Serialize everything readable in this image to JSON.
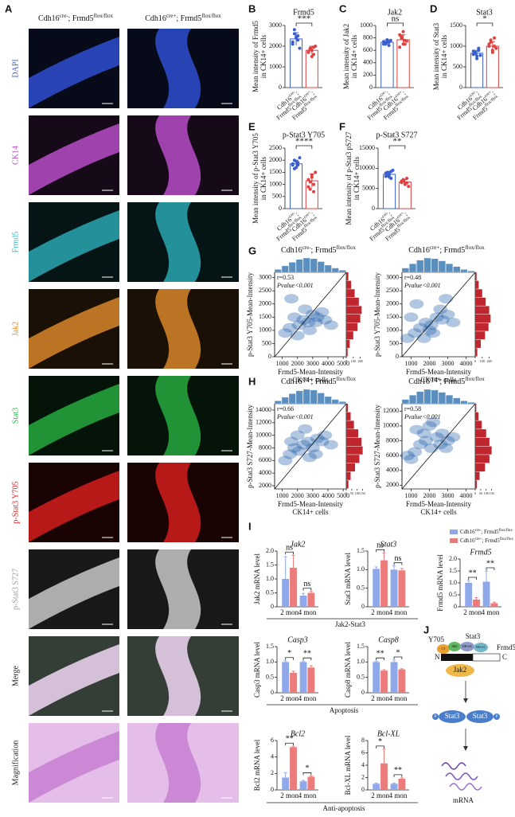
{
  "panel_letters": [
    "A",
    "B",
    "C",
    "D",
    "E",
    "F",
    "G",
    "H",
    "I",
    "J"
  ],
  "genotypes": {
    "control": [
      {
        "text": "Cdh16"
      },
      {
        "text": "cre-",
        "sup": true
      },
      {
        "text": ";"
      },
      {
        "text": " Frmd5"
      },
      {
        "text": "flox/flox",
        "sup": true
      }
    ],
    "ko": [
      {
        "text": "Cdh16"
      },
      {
        "text": "cre+",
        "sup": true
      },
      {
        "text": ";"
      },
      {
        "text": " Frmd5"
      },
      {
        "text": "flox/flox",
        "sup": true
      }
    ]
  },
  "panel_a": {
    "rows": [
      {
        "label": "DAPI",
        "label_color": "#3a5ec8",
        "stain": "#2f4fd0",
        "background": "#000000"
      },
      {
        "label": "CK14",
        "label_color": "#b04fc0",
        "stain": "#b84cc8",
        "background": "#000000"
      },
      {
        "label": "Frmd5",
        "label_color": "#3ab5c0",
        "stain": "#2aa6b0",
        "background": "#000000"
      },
      {
        "label": "Jak2",
        "label_color": "#d98a2a",
        "stain": "#d8862a",
        "background": "#000000"
      },
      {
        "label": "Stat3",
        "label_color": "#2fb34a",
        "stain": "#27a83e",
        "background": "#000000"
      },
      {
        "label": "p-Stat3 Y705",
        "label_color": "#e02020",
        "stain": "#d41c1c",
        "background": "#000000"
      },
      {
        "label": "p-Stat3 S727",
        "label_color": "#9a9a9a",
        "stain": "#c8c8c8",
        "background": "#000000"
      },
      {
        "label": "Merge",
        "label_color": "#222222",
        "stain": "#f0d8f5",
        "background": "#1c2a1c"
      },
      {
        "label": "Magnification",
        "label_color": "#222222",
        "stain": "#c77fd0",
        "background": "#e9c7ec"
      }
    ]
  },
  "chart_data": [
    {
      "type": "dotbar",
      "title": "Frmd5",
      "ylabel": [
        "Mean intensity of Frmd5",
        "in CK14+ cells"
      ],
      "ylim": [
        0,
        3000
      ],
      "yticks": [
        0,
        1000,
        2000,
        3000
      ],
      "values": [
        2350,
        1800
      ],
      "errors": [
        300,
        200
      ],
      "colors": [
        "#3a5fcd",
        "#e04040"
      ],
      "significance": "***",
      "points": [
        [
          2100,
          2600,
          2450,
          2300,
          1900,
          2200,
          2800,
          2400,
          2500
        ],
        [
          1700,
          1900,
          1800,
          1600,
          2000,
          1750,
          1850,
          1500,
          1950
        ]
      ]
    },
    {
      "type": "dotbar",
      "title": "Jak2",
      "ylabel": [
        "Mean intensity of Jak2",
        "in CK14+ cells"
      ],
      "ylim": [
        0,
        1000
      ],
      "yticks": [
        0,
        200,
        400,
        600,
        800,
        1000
      ],
      "values": [
        730,
        770
      ],
      "errors": [
        40,
        80
      ],
      "colors": [
        "#3a5fcd",
        "#e04040"
      ],
      "significance": "ns",
      "points": [
        [
          700,
          720,
          750,
          680,
          760,
          740,
          700,
          770,
          730
        ],
        [
          650,
          800,
          900,
          700,
          750,
          850,
          820,
          700,
          760
        ]
      ]
    },
    {
      "type": "dotbar",
      "title": "Stat3",
      "ylabel": [
        "Mean intensity of Stat3",
        "in CK14+ cells"
      ],
      "ylim": [
        0,
        1500
      ],
      "yticks": [
        0,
        500,
        1000,
        1500
      ],
      "values": [
        830,
        1000
      ],
      "errors": [
        70,
        110
      ],
      "colors": [
        "#3a5fcd",
        "#e04040"
      ],
      "significance": "*",
      "points": [
        [
          800,
          850,
          700,
          900,
          780,
          880,
          820,
          760,
          950
        ],
        [
          1000,
          1100,
          850,
          1200,
          950,
          1050,
          1150,
          900,
          1000
        ]
      ]
    },
    {
      "type": "dotbar",
      "title": "p-Stat3 Y705",
      "ylabel": [
        "Mean intensity of p-Stat3 Y705",
        "in CK14+ cells"
      ],
      "ylim": [
        0,
        2500
      ],
      "yticks": [
        0,
        500,
        1000,
        1500,
        2000,
        2500
      ],
      "values": [
        1850,
        1150
      ],
      "errors": [
        150,
        280
      ],
      "colors": [
        "#3a5fcd",
        "#e04040"
      ],
      "significance": "****",
      "points": [
        [
          1800,
          2000,
          1700,
          1900,
          2100,
          1850,
          1650,
          1950,
          1800
        ],
        [
          1200,
          800,
          1400,
          1000,
          1500,
          900,
          1100,
          1300,
          700
        ]
      ]
    },
    {
      "type": "dotbar",
      "title": "p-Stat3 S727",
      "ylabel": [
        "Mean intensity of p-Stat3 pS727",
        "in CK14+ cells"
      ],
      "ylim": [
        0,
        15000
      ],
      "yticks": [
        0,
        5000,
        10000,
        15000
      ],
      "values": [
        8500,
        6600
      ],
      "errors": [
        700,
        600
      ],
      "colors": [
        "#3a5fcd",
        "#e04040"
      ],
      "significance": "**",
      "points": [
        [
          8000,
          9000,
          8500,
          7500,
          9500,
          8800,
          8200,
          7800,
          9200
        ],
        [
          6500,
          7000,
          6000,
          7500,
          5500,
          6800,
          7200,
          6200,
          6400
        ]
      ]
    },
    {
      "type": "scatter",
      "genotype": "control",
      "ylabel": "p-Stat3 Y705-Mean-Intensity",
      "xlabel": [
        "Frmd5-Mean-Intensity",
        "CK14+ cells"
      ],
      "annotations": [
        "r=0.53",
        "Pvalue<0.001"
      ],
      "xlim": [
        500,
        5200
      ],
      "xticks": [
        1000,
        2000,
        3000,
        4000,
        5000
      ],
      "ylim": [
        0,
        3200
      ],
      "yticks": [
        0,
        500,
        1000,
        1500,
        2000,
        2500,
        3000
      ],
      "x": [
        1200,
        1500,
        1800,
        2100,
        2400,
        2700,
        3000,
        3300,
        3600,
        2000,
        2500,
        3200,
        1600,
        2800,
        3800,
        4200
      ],
      "y": [
        900,
        1100,
        1500,
        1200,
        1400,
        1300,
        1600,
        1500,
        1700,
        800,
        1800,
        1300,
        2200,
        1000,
        1400,
        1200
      ],
      "x_hist": [
        40,
        90,
        140,
        180,
        200,
        190,
        150,
        100,
        60,
        30
      ],
      "y_hist": [
        20,
        50,
        100,
        160,
        200,
        220,
        180,
        120,
        70,
        30
      ],
      "y_hist_lim": [
        0,
        250
      ],
      "y_hist_ticks": [
        0,
        100,
        200
      ],
      "point_color": "#1f5fa8",
      "hist_color": "#5a8fc0",
      "hist2_color": "#c0262d"
    },
    {
      "type": "scatter",
      "genotype": "ko",
      "ylabel": "p-Stat3 Y705-Mean-Intensity",
      "xlabel": [
        "Frmd5-Mean-Intensity",
        "CK14+ cells"
      ],
      "annotations": [
        "r=0.48",
        "Pvalue<0.001"
      ],
      "xlim": [
        500,
        4500
      ],
      "xticks": [
        1000,
        2000,
        3000,
        4000
      ],
      "ylim": [
        0,
        3200
      ],
      "yticks": [
        0,
        500,
        1000,
        1500,
        2000,
        2500,
        3000
      ],
      "x": [
        800,
        1200,
        1500,
        1800,
        2100,
        2400,
        2700,
        3000,
        1300,
        2000,
        2600,
        3300,
        1000,
        1700,
        2200,
        2900
      ],
      "y": [
        700,
        900,
        1100,
        1300,
        1200,
        1500,
        1400,
        1600,
        2000,
        1000,
        1800,
        1300,
        1500,
        700,
        900,
        2200
      ],
      "x_hist": [
        60,
        120,
        170,
        200,
        190,
        160,
        120,
        80,
        40,
        20
      ],
      "y_hist": [
        30,
        80,
        140,
        190,
        220,
        200,
        150,
        100,
        50,
        20
      ],
      "y_hist_lim": [
        0,
        250
      ],
      "y_hist_ticks": [
        0,
        100,
        200
      ],
      "point_color": "#1f5fa8",
      "hist_color": "#5a8fc0",
      "hist2_color": "#c0262d"
    },
    {
      "type": "scatter",
      "genotype": "control",
      "ylabel": "p-Stat3 S727-Mean-Intensity",
      "xlabel": [
        "Frmd5-Mean-Intensity",
        "CK14+ cells"
      ],
      "annotations": [
        "r=0.66",
        "Pvalue<0.001"
      ],
      "xlim": [
        500,
        5200
      ],
      "xticks": [
        1000,
        2000,
        3000,
        4000,
        5000
      ],
      "ylim": [
        1500,
        15000
      ],
      "yticks": [
        2000,
        4000,
        6000,
        8000,
        10000,
        12000,
        14000
      ],
      "x": [
        1200,
        1500,
        1800,
        2100,
        2400,
        2700,
        3000,
        3300,
        3600,
        2000,
        2500,
        3200,
        1600,
        2800,
        3800,
        4200
      ],
      "y": [
        6000,
        7000,
        8000,
        7500,
        8500,
        9000,
        8000,
        9500,
        9000,
        10000,
        11000,
        7000,
        9000,
        6500,
        10000,
        8500
      ],
      "x_hist": [
        40,
        90,
        140,
        180,
        200,
        190,
        150,
        100,
        60,
        30
      ],
      "y_hist": [
        20,
        40,
        80,
        120,
        150,
        140,
        110,
        70,
        40,
        15
      ],
      "y_hist_lim": [
        0,
        160
      ],
      "y_hist_ticks": [
        0,
        50,
        100,
        150
      ],
      "point_color": "#1f5fa8",
      "hist_color": "#5a8fc0",
      "hist2_color": "#c0262d"
    },
    {
      "type": "scatter",
      "genotype": "ko",
      "ylabel": "p-Stat3 S727-Mean-Intensity",
      "xlabel": [
        "Frmd5-Mean-Intensity",
        "CK14+ cells"
      ],
      "annotations": [
        "r=0.58",
        "Pvalue<0.001"
      ],
      "xlim": [
        500,
        4500
      ],
      "xticks": [
        1000,
        2000,
        3000,
        4000
      ],
      "ylim": [
        1500,
        13000
      ],
      "yticks": [
        2000,
        4000,
        6000,
        8000,
        10000,
        12000
      ],
      "x": [
        800,
        1200,
        1500,
        1800,
        2100,
        2400,
        2700,
        3000,
        1300,
        2000,
        2600,
        3300,
        1000,
        1700,
        2200,
        2900
      ],
      "y": [
        6000,
        6500,
        7500,
        8000,
        7000,
        8500,
        9000,
        8000,
        9500,
        10000,
        7500,
        8500,
        5500,
        9000,
        10500,
        7000
      ],
      "x_hist": [
        60,
        120,
        170,
        200,
        190,
        160,
        120,
        80,
        40,
        20
      ],
      "y_hist": [
        15,
        40,
        90,
        130,
        150,
        130,
        100,
        60,
        30,
        10
      ],
      "y_hist_lim": [
        0,
        160
      ],
      "y_hist_ticks": [
        0,
        50,
        100,
        150
      ],
      "point_color": "#1f5fa8",
      "hist_color": "#5a8fc0",
      "hist2_color": "#c0262d"
    },
    {
      "type": "bar",
      "title": "Jak2",
      "ylabel": "Jak2 mRNA level",
      "categories": [
        "2 mon",
        "4 mon"
      ],
      "ylim": [
        0,
        2.0
      ],
      "yticks": [
        0,
        0.5,
        {
          "value": 1,
          "label": "1.0"
        },
        1.5,
        {
          "value": 2,
          "label": "2.0"
        }
      ],
      "significance": [
        "ns",
        "ns"
      ],
      "series": [
        {
          "color": "#8fa8ea",
          "values": [
            1.0,
            0.4
          ],
          "errors": [
            0.8,
            0.08
          ]
        },
        {
          "color": "#ec7b7b",
          "values": [
            1.4,
            0.5
          ],
          "errors": [
            0.45,
            0.05
          ]
        }
      ]
    },
    {
      "type": "bar",
      "title": "Stat3",
      "ylabel": "Stat3 mRNA level",
      "categories": [
        "2 mon",
        "4 mon"
      ],
      "ylim": [
        0,
        1.5
      ],
      "yticks": [
        0,
        0.5,
        {
          "value": 1,
          "label": "1.0"
        },
        1.5
      ],
      "significance": [
        "ns",
        "ns"
      ],
      "series": [
        {
          "color": "#8fa8ea",
          "values": [
            1.02,
            1.0
          ],
          "errors": [
            0.05,
            0.1
          ]
        },
        {
          "color": "#ec7b7b",
          "values": [
            1.25,
            0.98
          ],
          "errors": [
            0.2,
            0.05
          ]
        }
      ]
    },
    {
      "type": "bar",
      "title": "Frmd5",
      "ylabel": "Frmd5 mRNA level",
      "categories": [
        "2 mon",
        "4 mon"
      ],
      "ylim": [
        0,
        2.0
      ],
      "legend": true,
      "yticks": [
        0,
        0.5,
        {
          "value": 1,
          "label": "1.0"
        },
        1.5,
        {
          "value": 2,
          "label": "2.0"
        }
      ],
      "significance": [
        "**",
        "**"
      ],
      "series": [
        {
          "color": "#8fa8ea",
          "values": [
            1.0,
            1.05
          ],
          "errors": [
            0.1,
            0.45
          ]
        },
        {
          "color": "#ec7b7b",
          "values": [
            0.3,
            0.15
          ],
          "errors": [
            0.08,
            0.04
          ]
        }
      ]
    },
    {
      "type": "bar",
      "title": "Casp3",
      "ylabel": "Casp3 mRNA level",
      "categories": [
        "2 mon",
        "4 mon"
      ],
      "ylim": [
        0,
        1.5
      ],
      "yticks": [
        0,
        0.5,
        {
          "value": 1,
          "label": "1.0"
        },
        1.5
      ],
      "significance": [
        "*",
        "**"
      ],
      "series": [
        {
          "color": "#8fa8ea",
          "values": [
            1.0,
            1.0
          ],
          "errors": [
            0.04,
            0.03
          ]
        },
        {
          "color": "#ec7b7b",
          "values": [
            0.65,
            0.82
          ],
          "errors": [
            0.05,
            0.06
          ]
        }
      ]
    },
    {
      "type": "bar",
      "title": "Casp8",
      "ylabel": "Casp8 mRNA level",
      "categories": [
        "2 mon",
        "4 mon"
      ],
      "ylim": [
        0,
        1.5
      ],
      "yticks": [
        0,
        0.5,
        {
          "value": 1,
          "label": "1.0"
        },
        1.5
      ],
      "significance": [
        "**",
        "*"
      ],
      "series": [
        {
          "color": "#8fa8ea",
          "values": [
            1.0,
            1.0
          ],
          "errors": [
            0.03,
            0.06
          ]
        },
        {
          "color": "#ec7b7b",
          "values": [
            0.72,
            0.76
          ],
          "errors": [
            0.03,
            0.02
          ]
        }
      ]
    },
    {
      "type": "bar",
      "title": "Bcl2",
      "ylabel": "Bcl2 mRNA level",
      "categories": [
        "2 mon",
        "4 mon"
      ],
      "ylim": [
        0,
        6
      ],
      "yticks": [
        0,
        2,
        4,
        6
      ],
      "significance": [
        "**",
        "*"
      ],
      "series": [
        {
          "color": "#8fa8ea",
          "values": [
            1.5,
            1.05
          ],
          "errors": [
            0.6,
            0.1
          ]
        },
        {
          "color": "#ec7b7b",
          "values": [
            5.2,
            1.6
          ],
          "errors": [
            0.1,
            0.1
          ]
        }
      ]
    },
    {
      "type": "bar",
      "title": "Bcl-XL",
      "ylabel": "Bcl-XL mRNA level",
      "categories": [
        "2 mon",
        "4 mon"
      ],
      "ylim": [
        0,
        8
      ],
      "yticks": [
        0,
        2,
        4,
        6,
        8
      ],
      "significance": [
        "*",
        "**"
      ],
      "series": [
        {
          "color": "#8fa8ea",
          "values": [
            1.0,
            1.0
          ],
          "errors": [
            0.1,
            0.1
          ]
        },
        {
          "color": "#ec7b7b",
          "values": [
            4.3,
            1.8
          ],
          "errors": [
            2.3,
            0.15
          ]
        }
      ]
    }
  ],
  "group_labels": [
    "Jak2-Stat3",
    "Apoptosis",
    "Anti-apoptosis"
  ],
  "panel_j": {
    "site": "Y705",
    "protein": "Stat3",
    "domains": [
      "CT",
      "SH2",
      "DB-LK",
      "ND-CC"
    ],
    "partner": "Frmd5",
    "n_term": "N",
    "c_term": "C",
    "kinase": "Jak2",
    "dimer": [
      "Stat3",
      "Stat3"
    ],
    "phospho": [
      "P",
      "P"
    ],
    "product": "mRNA"
  }
}
